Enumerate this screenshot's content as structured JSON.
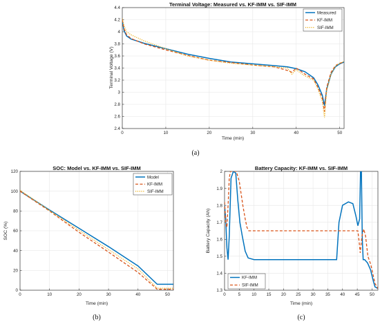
{
  "colors": {
    "measured": "#0072BD",
    "kf": "#D95319",
    "sif": "#EDB120",
    "model": "#0072BD"
  },
  "chart_data": [
    {
      "id": "a",
      "type": "line",
      "caption": "(a)",
      "title": "Terminal Voltage: Measured vs. KF-IMM vs. SIF-IMM",
      "xlabel": "Time (min)",
      "ylabel": "Terminal Voltage (V)",
      "xlim": [
        0,
        51
      ],
      "ylim": [
        2.4,
        4.4
      ],
      "xticks": [
        "0",
        "10",
        "20",
        "30",
        "40",
        "50"
      ],
      "xtick_values": [
        0,
        10,
        20,
        30,
        40,
        50
      ],
      "yticks": [
        "2.4",
        "2.6",
        "2.8",
        "3",
        "3.2",
        "3.4",
        "3.6",
        "3.8",
        "4",
        "4.2",
        "4.4"
      ],
      "ytick_values": [
        2.4,
        2.6,
        2.8,
        3.0,
        3.2,
        3.4,
        3.6,
        3.8,
        4.0,
        4.2,
        4.4
      ],
      "grid": true,
      "legend_position": "top-right",
      "series": [
        {
          "name": "Measured",
          "style": "solid",
          "color_key": "measured",
          "x": [
            0,
            0.4,
            1,
            2,
            5,
            10,
            15,
            20,
            25,
            30,
            35,
            38,
            40,
            42,
            44,
            45,
            46,
            46.5,
            47,
            48,
            49,
            50,
            51
          ],
          "y": [
            4.18,
            4.02,
            3.93,
            3.88,
            3.81,
            3.72,
            3.63,
            3.56,
            3.5,
            3.47,
            3.44,
            3.42,
            3.39,
            3.34,
            3.24,
            3.12,
            2.95,
            2.78,
            3.05,
            3.3,
            3.42,
            3.47,
            3.5
          ]
        },
        {
          "name": "KF-IMM",
          "style": "dashed",
          "color_key": "kf",
          "x": [
            0,
            0.4,
            1,
            2,
            5,
            10,
            15,
            20,
            25,
            30,
            35,
            38,
            39,
            40,
            41,
            42,
            44,
            45,
            46,
            46.5,
            47,
            48,
            49,
            50,
            51
          ],
          "y": [
            4.2,
            4.05,
            3.95,
            3.89,
            3.8,
            3.7,
            3.61,
            3.53,
            3.49,
            3.45,
            3.42,
            3.36,
            3.33,
            3.4,
            3.35,
            3.3,
            3.22,
            3.08,
            2.9,
            2.68,
            3.08,
            3.33,
            3.44,
            3.48,
            3.5
          ]
        },
        {
          "name": "SIF-IMM",
          "style": "dotted",
          "color_key": "sif",
          "x": [
            0,
            0.4,
            1,
            2,
            5,
            10,
            15,
            20,
            25,
            30,
            35,
            38,
            39,
            40,
            41,
            42,
            44,
            45,
            46,
            46.5,
            47,
            48,
            49,
            50,
            51
          ],
          "y": [
            4.22,
            4.1,
            4.0,
            3.95,
            3.85,
            3.72,
            3.6,
            3.53,
            3.48,
            3.45,
            3.42,
            3.4,
            3.3,
            3.37,
            3.32,
            3.27,
            3.2,
            3.05,
            2.85,
            2.58,
            3.02,
            3.3,
            3.43,
            3.48,
            3.51
          ]
        }
      ]
    },
    {
      "id": "b",
      "type": "line",
      "caption": "(b)",
      "title": "SOC: Model vs. KF-IMM vs. SIF-IMM",
      "xlabel": "Time (min)",
      "ylabel": "SOC (%)",
      "xlim": [
        0,
        52
      ],
      "ylim": [
        0,
        120
      ],
      "xticks": [
        "0",
        "10",
        "20",
        "30",
        "40",
        "50"
      ],
      "xtick_values": [
        0,
        10,
        20,
        30,
        40,
        50
      ],
      "yticks": [
        "0",
        "20",
        "40",
        "60",
        "80",
        "100",
        "120"
      ],
      "ytick_values": [
        0,
        20,
        40,
        60,
        80,
        100,
        120
      ],
      "grid": true,
      "legend_position": "top-right",
      "series": [
        {
          "name": "Model",
          "style": "solid",
          "color_key": "model",
          "x": [
            0,
            10,
            20,
            30,
            40,
            46.5,
            52
          ],
          "y": [
            100,
            81,
            62.5,
            44,
            24.5,
            6,
            6
          ]
        },
        {
          "name": "KF-IMM",
          "style": "dashed",
          "color_key": "kf",
          "x": [
            0,
            10,
            20,
            30,
            40,
            46.5,
            52
          ],
          "y": [
            100,
            80,
            58.5,
            38.5,
            18,
            1,
            1
          ]
        },
        {
          "name": "SIF-IMM",
          "style": "dotted",
          "color_key": "sif",
          "x": [
            0,
            10,
            20,
            30,
            40,
            46.5,
            52
          ],
          "y": [
            101,
            80.5,
            60.5,
            41,
            21.5,
            2,
            2
          ]
        }
      ]
    },
    {
      "id": "c",
      "type": "line",
      "caption": "(c)",
      "title": "Battery Capacity: KF-IMM vs. SIF-IMM",
      "xlabel": "Time (min)",
      "ylabel": "Battery Capacity (Ah)",
      "xlim": [
        0,
        52
      ],
      "ylim": [
        1.3,
        2.0
      ],
      "xticks": [
        "0",
        "5",
        "10",
        "15",
        "20",
        "25",
        "30",
        "35",
        "40",
        "45",
        "50"
      ],
      "xtick_values": [
        0,
        5,
        10,
        15,
        20,
        25,
        30,
        35,
        40,
        45,
        50
      ],
      "yticks": [
        "1.3",
        "1.4",
        "1.5",
        "1.6",
        "1.7",
        "1.8",
        "1.9",
        "2"
      ],
      "ytick_values": [
        1.3,
        1.4,
        1.5,
        1.6,
        1.7,
        1.8,
        1.9,
        2.0
      ],
      "grid": true,
      "legend_position": "bottom-left",
      "series": [
        {
          "name": "KF-IMM",
          "style": "solid",
          "color_key": "kf_c",
          "x": [
            0,
            0.4,
            0.8,
            1.2,
            1.6,
            2.2,
            3.0,
            3.8,
            4.5,
            5.2,
            6.0,
            7.0,
            8.0,
            10,
            20,
            30,
            38,
            38.8,
            40,
            42,
            43.5,
            44.5,
            45.2,
            45.8,
            46.1,
            46.4,
            46.7,
            47.0,
            47.5,
            48.5,
            49.5,
            50.5,
            51,
            52
          ],
          "y": [
            1.8,
            1.72,
            1.55,
            1.48,
            1.62,
            1.96,
            2.0,
            1.99,
            1.83,
            1.7,
            1.62,
            1.53,
            1.49,
            1.48,
            1.48,
            1.48,
            1.48,
            1.7,
            1.8,
            1.82,
            1.81,
            1.74,
            1.68,
            1.72,
            2.0,
            2.0,
            1.6,
            1.48,
            1.48,
            1.46,
            1.42,
            1.35,
            1.32,
            1.31
          ]
        },
        {
          "name": "SIF-IMM",
          "style": "dashed",
          "color_key": "sif_c",
          "x": [
            0,
            0.4,
            0.8,
            1.2,
            1.6,
            2.0,
            2.5,
            3.0,
            4.0,
            5.0,
            5.6,
            6.2,
            7.0,
            7.6,
            8.2,
            10,
            20,
            30,
            40,
            44,
            45.2,
            45.6,
            46.0,
            46.6,
            47.2,
            47.8,
            48.6,
            49.6,
            50.5,
            51,
            52
          ],
          "y": [
            1.82,
            1.7,
            1.67,
            1.8,
            1.96,
            2.0,
            2.0,
            2.0,
            2.0,
            1.94,
            1.87,
            1.8,
            1.72,
            1.67,
            1.65,
            1.65,
            1.65,
            1.65,
            1.65,
            1.65,
            1.65,
            1.59,
            1.52,
            1.62,
            1.66,
            1.62,
            1.5,
            1.45,
            1.38,
            1.34,
            1.31
          ]
        }
      ]
    }
  ],
  "legend_colors": {
    "kf_c": "#0072BD",
    "sif_c": "#D95319"
  }
}
